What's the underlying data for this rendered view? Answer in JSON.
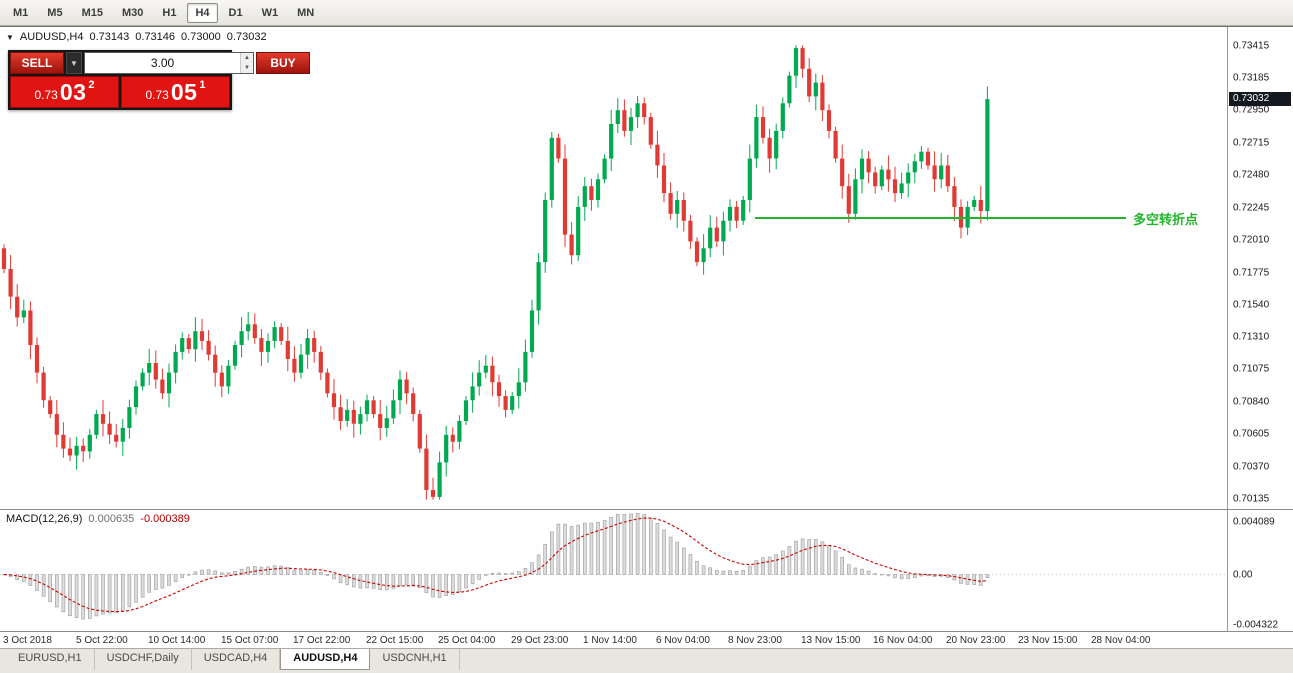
{
  "toolbar": {
    "timeframes": [
      {
        "label": "M1",
        "active": false
      },
      {
        "label": "M5",
        "active": false
      },
      {
        "label": "M15",
        "active": false
      },
      {
        "label": "M30",
        "active": false
      },
      {
        "label": "H1",
        "active": false
      },
      {
        "label": "H4",
        "active": true
      },
      {
        "label": "D1",
        "active": false
      },
      {
        "label": "W1",
        "active": false
      },
      {
        "label": "MN",
        "active": false
      }
    ]
  },
  "icons": {
    "chart_menu": "▼",
    "dropdown": "▼",
    "spin_up": "▲",
    "spin_down": "▼"
  },
  "chart_header": {
    "symbol": "AUDUSD,H4",
    "open": "0.73143",
    "high": "0.73146",
    "low": "0.73000",
    "close": "0.73032"
  },
  "trade_panel": {
    "sell_label": "SELL",
    "buy_label": "BUY",
    "lot": "3.00",
    "sell_price_prefix": "0.73",
    "sell_price_big": "03",
    "sell_price_sup": "2",
    "buy_price_prefix": "0.73",
    "buy_price_big": "05",
    "buy_price_sup": "1"
  },
  "macd_header": {
    "name": "MACD(12,26,9)",
    "value_main": "0.000635",
    "value_signal": "-0.000389"
  },
  "tabs": [
    {
      "label": "EURUSD,H1",
      "active": false
    },
    {
      "label": "USDCHF,Daily",
      "active": false
    },
    {
      "label": "USDCAD,H4",
      "active": false
    },
    {
      "label": "AUDUSD,H4",
      "active": true
    },
    {
      "label": "USDCNH,H1",
      "active": false
    }
  ],
  "colors": {
    "up": "#00a94f",
    "down": "#e03a34",
    "annotation": "#22b52a",
    "price_tag_bg": "#14191f",
    "trade_red": "#e01412",
    "macd_hist_fill": "#dcdcdc",
    "macd_hist_stroke": "#9c9c9c",
    "macd_signal": "#cc0000",
    "macd_value_main": "#6e6e6e",
    "macd_value_signal": "#b30000"
  },
  "chart_data": {
    "type": "candlestick",
    "symbol": "AUDUSD",
    "timeframe": "H4",
    "ohlc_current": {
      "open": 0.73143,
      "high": 0.73146,
      "low": 0.73,
      "close": 0.73032
    },
    "current_price_label": "0.73032",
    "y_axis": {
      "max": 0.73415,
      "min": 0.70135,
      "ticks": [
        "0.73415",
        "0.73185",
        "0.72950",
        "0.72715",
        "0.72480",
        "0.72245",
        "0.72010",
        "0.71775",
        "0.71540",
        "0.71310",
        "0.71075",
        "0.70840",
        "0.70605",
        "0.70370",
        "0.70135"
      ]
    },
    "x_labels": [
      "3 Oct 2018",
      "5 Oct 22:00",
      "10 Oct 14:00",
      "15 Oct 07:00",
      "17 Oct 22:00",
      "22 Oct 15:00",
      "25 Oct 04:00",
      "29 Oct 23:00",
      "1 Nov 14:00",
      "6 Nov 04:00",
      "8 Nov 23:00",
      "13 Nov 15:00",
      "16 Nov 04:00",
      "20 Nov 23:00",
      "23 Nov 15:00",
      "28 Nov 04:00"
    ],
    "first_open": 0.7195,
    "closes": [
      0.718,
      0.716,
      0.7145,
      0.715,
      0.7125,
      0.7105,
      0.7085,
      0.7075,
      0.706,
      0.705,
      0.7045,
      0.7052,
      0.7048,
      0.706,
      0.7075,
      0.7068,
      0.706,
      0.7055,
      0.7065,
      0.708,
      0.7095,
      0.7105,
      0.7112,
      0.71,
      0.709,
      0.7105,
      0.712,
      0.713,
      0.7122,
      0.7135,
      0.7128,
      0.7118,
      0.7105,
      0.7095,
      0.711,
      0.7125,
      0.7135,
      0.714,
      0.713,
      0.712,
      0.7128,
      0.7138,
      0.7128,
      0.7115,
      0.7105,
      0.7118,
      0.713,
      0.712,
      0.7105,
      0.709,
      0.708,
      0.707,
      0.7078,
      0.7068,
      0.7075,
      0.7085,
      0.7075,
      0.7065,
      0.7072,
      0.7085,
      0.71,
      0.709,
      0.7075,
      0.705,
      0.702,
      0.7015,
      0.704,
      0.706,
      0.7055,
      0.707,
      0.7085,
      0.7095,
      0.7105,
      0.711,
      0.7098,
      0.7088,
      0.7078,
      0.7088,
      0.7098,
      0.712,
      0.715,
      0.7185,
      0.723,
      0.7275,
      0.726,
      0.7205,
      0.719,
      0.7225,
      0.724,
      0.723,
      0.7245,
      0.726,
      0.7285,
      0.7295,
      0.728,
      0.729,
      0.73,
      0.729,
      0.727,
      0.7255,
      0.7235,
      0.722,
      0.723,
      0.7215,
      0.72,
      0.7185,
      0.7195,
      0.721,
      0.72,
      0.7215,
      0.7225,
      0.7215,
      0.723,
      0.726,
      0.729,
      0.7275,
      0.726,
      0.728,
      0.73,
      0.732,
      0.734,
      0.7325,
      0.7305,
      0.7315,
      0.7295,
      0.728,
      0.726,
      0.724,
      0.722,
      0.7245,
      0.726,
      0.725,
      0.724,
      0.7252,
      0.7245,
      0.7235,
      0.7242,
      0.725,
      0.7258,
      0.7265,
      0.7255,
      0.7245,
      0.7255,
      0.724,
      0.7225,
      0.721,
      0.7225,
      0.723,
      0.7222,
      0.7303
    ],
    "wick_high_cap": 0.7342,
    "wick_low_cap": 0.7013,
    "annotation_line": {
      "text": "多空转折点",
      "price": 0.7217,
      "x_start_frac": 0.615,
      "x_end_frac": 0.917
    },
    "indicator": {
      "name": "MACD",
      "params": [
        12,
        26,
        9
      ],
      "value_main": 0.000635,
      "value_signal": -0.000389,
      "scale_max": 0.004089,
      "scale_min": -0.004322,
      "axis_labels": [
        "0.004089",
        "0.00",
        "-0.004322"
      ]
    }
  }
}
